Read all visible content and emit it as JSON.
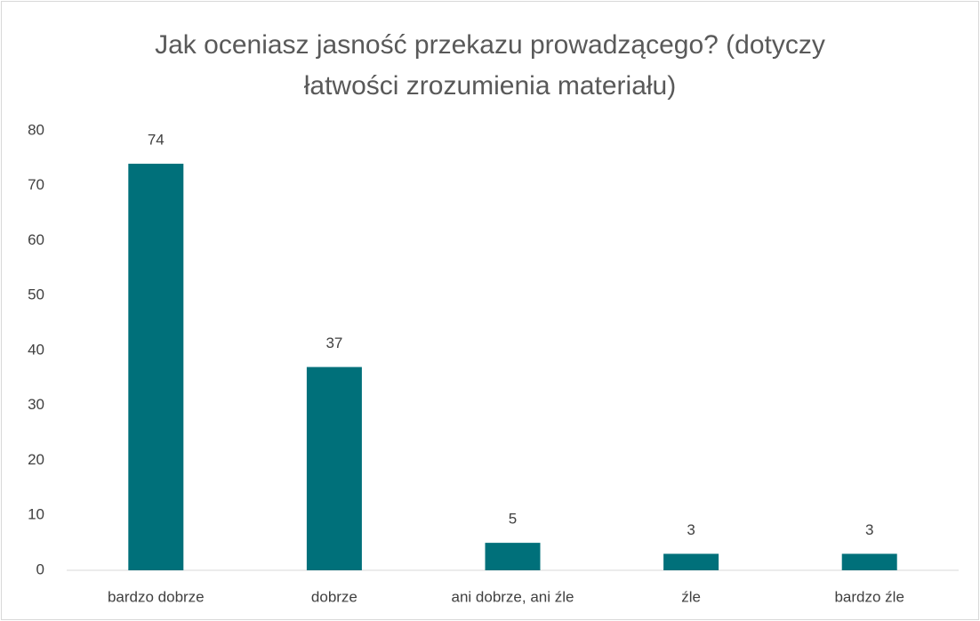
{
  "chart_data": {
    "type": "bar",
    "title": "Jak oceniasz jasność przekazu prowadzącego? (dotyczy łatwości zrozumienia materiału)",
    "categories": [
      "bardzo dobrze",
      "dobrze",
      "ani dobrze, ani źle",
      "źle",
      "bardzo źle"
    ],
    "values": [
      74,
      37,
      5,
      3,
      3
    ],
    "color": "#00707a",
    "ylim": [
      0,
      80
    ],
    "yticks": [
      0,
      10,
      20,
      30,
      40,
      50,
      60,
      70,
      80
    ],
    "grid": false
  }
}
